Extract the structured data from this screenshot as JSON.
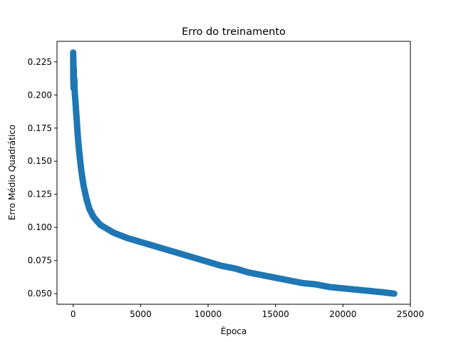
{
  "chart_data": {
    "type": "scatter",
    "title": "Erro do treinamento",
    "xlabel": "Época",
    "ylabel": "Erro Médio Quadrático",
    "xlim": [
      -1200,
      25000
    ],
    "ylim": [
      0.042,
      0.2405
    ],
    "xticks": [
      0,
      5000,
      10000,
      15000,
      20000,
      25000
    ],
    "xtick_labels": [
      "0",
      "5000",
      "10000",
      "15000",
      "20000",
      "25000"
    ],
    "yticks": [
      0.05,
      0.075,
      0.1,
      0.125,
      0.15,
      0.175,
      0.2,
      0.225
    ],
    "ytick_labels": [
      "0.050",
      "0.075",
      "0.100",
      "0.125",
      "0.150",
      "0.175",
      "0.200",
      "0.225"
    ],
    "grid": false,
    "legend": "none",
    "marker_color": "#1f77b4",
    "series": [
      {
        "points": [
          [
            0,
            0.232
          ],
          [
            10,
            0.21
          ],
          [
            20,
            0.225
          ],
          [
            30,
            0.205
          ],
          [
            40,
            0.22
          ],
          [
            50,
            0.215
          ],
          [
            60,
            0.208
          ],
          [
            80,
            0.212
          ],
          [
            100,
            0.205
          ],
          [
            130,
            0.2
          ],
          [
            160,
            0.196
          ],
          [
            200,
            0.19
          ],
          [
            250,
            0.183
          ],
          [
            300,
            0.175
          ],
          [
            350,
            0.168
          ],
          [
            400,
            0.162
          ],
          [
            500,
            0.152
          ],
          [
            600,
            0.143
          ],
          [
            700,
            0.136
          ],
          [
            800,
            0.13
          ],
          [
            1000,
            0.121
          ],
          [
            1200,
            0.114
          ],
          [
            1500,
            0.108
          ],
          [
            2000,
            0.102
          ],
          [
            2500,
            0.099
          ],
          [
            3000,
            0.096
          ],
          [
            4000,
            0.092
          ],
          [
            5000,
            0.089
          ],
          [
            6000,
            0.086
          ],
          [
            7000,
            0.083
          ],
          [
            8000,
            0.08
          ],
          [
            9000,
            0.077
          ],
          [
            10000,
            0.074
          ],
          [
            11000,
            0.071
          ],
          [
            12000,
            0.069
          ],
          [
            13000,
            0.066
          ],
          [
            14000,
            0.064
          ],
          [
            15000,
            0.062
          ],
          [
            16000,
            0.06
          ],
          [
            17000,
            0.058
          ],
          [
            18000,
            0.057
          ],
          [
            19000,
            0.055
          ],
          [
            20000,
            0.054
          ],
          [
            21000,
            0.053
          ],
          [
            22000,
            0.052
          ],
          [
            23000,
            0.051
          ],
          [
            23800,
            0.05
          ]
        ]
      }
    ]
  }
}
